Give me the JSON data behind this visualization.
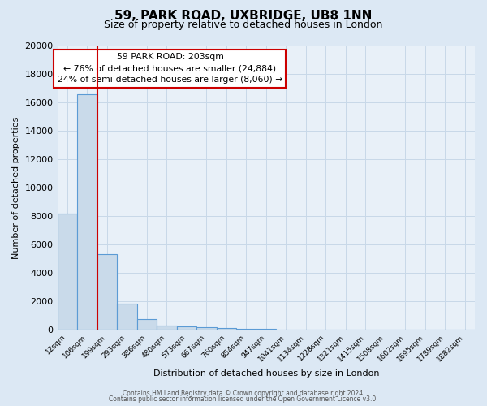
{
  "title": "59, PARK ROAD, UXBRIDGE, UB8 1NN",
  "subtitle": "Size of property relative to detached houses in London",
  "xlabel": "Distribution of detached houses by size in London",
  "ylabel": "Number of detached properties",
  "bar_labels": [
    "12sqm",
    "106sqm",
    "199sqm",
    "293sqm",
    "386sqm",
    "480sqm",
    "573sqm",
    "667sqm",
    "760sqm",
    "854sqm",
    "947sqm",
    "1041sqm",
    "1134sqm",
    "1228sqm",
    "1321sqm",
    "1415sqm",
    "1508sqm",
    "1602sqm",
    "1695sqm",
    "1789sqm",
    "1882sqm"
  ],
  "bar_values": [
    8200,
    16600,
    5300,
    1800,
    750,
    280,
    200,
    150,
    100,
    60,
    40,
    0,
    0,
    0,
    0,
    0,
    0,
    0,
    0,
    0,
    0
  ],
  "bar_color": "#c9daea",
  "bar_edge_color": "#5b9bd5",
  "ylim": [
    0,
    20000
  ],
  "yticks": [
    0,
    2000,
    4000,
    6000,
    8000,
    10000,
    12000,
    14000,
    16000,
    18000,
    20000
  ],
  "red_line_color": "#cc0000",
  "annotation_title": "59 PARK ROAD: 203sqm",
  "annotation_line1": "← 76% of detached houses are smaller (24,884)",
  "annotation_line2": "24% of semi-detached houses are larger (8,060) →",
  "annotation_box_color": "#ffffff",
  "annotation_box_edge": "#cc0000",
  "footer1": "Contains HM Land Registry data © Crown copyright and database right 2024.",
  "footer2": "Contains public sector information licensed under the Open Government Licence v3.0.",
  "bg_color": "#dce8f4",
  "plot_bg_color": "#e8f0f8",
  "grid_color": "#c8d8e8"
}
